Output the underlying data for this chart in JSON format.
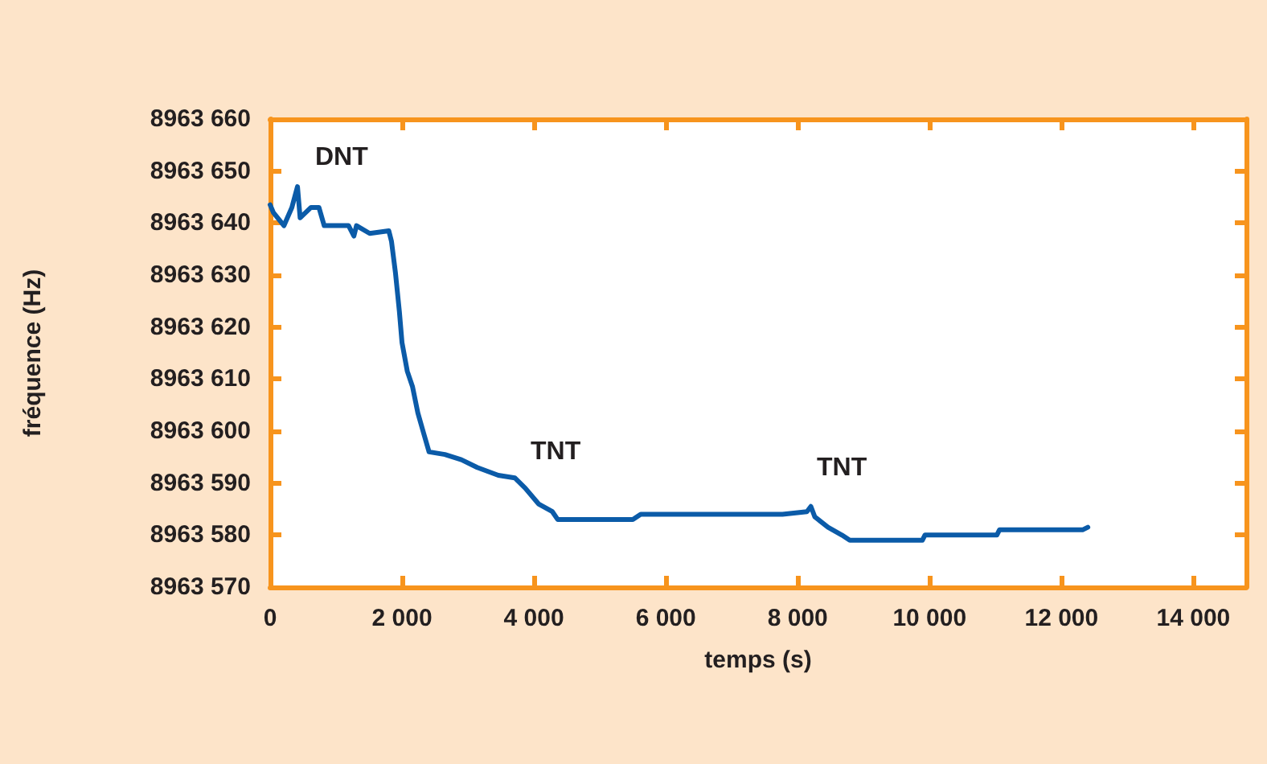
{
  "chart_data": {
    "type": "line",
    "xlabel": "temps (s)",
    "ylabel": "fréquence (Hz)",
    "xlim": [
      0,
      14800
    ],
    "ylim": [
      8963570,
      8963660
    ],
    "xticks": [
      {
        "value": 0,
        "label": "0"
      },
      {
        "value": 2000,
        "label": "2 000"
      },
      {
        "value": 4000,
        "label": "4 000"
      },
      {
        "value": 6000,
        "label": "6 000"
      },
      {
        "value": 8000,
        "label": "8 000"
      },
      {
        "value": 10000,
        "label": "10 000"
      },
      {
        "value": 12000,
        "label": "12 000"
      },
      {
        "value": 14000,
        "label": "14 000"
      }
    ],
    "yticks": [
      {
        "value": 8963570,
        "label": "8963 570"
      },
      {
        "value": 8963580,
        "label": "8963 580"
      },
      {
        "value": 8963590,
        "label": "8963 590"
      },
      {
        "value": 8963600,
        "label": "8963 600"
      },
      {
        "value": 8963610,
        "label": "8963 610"
      },
      {
        "value": 8963620,
        "label": "8963 620"
      },
      {
        "value": 8963630,
        "label": "8963 630"
      },
      {
        "value": 8963640,
        "label": "8963 640"
      },
      {
        "value": 8963650,
        "label": "8963 650"
      },
      {
        "value": 8963660,
        "label": "8963 660"
      }
    ],
    "grid": false,
    "marker": "none",
    "line_style": "solid",
    "x": [
      0,
      50,
      210,
      330,
      415,
      455,
      620,
      740,
      820,
      1190,
      1270,
      1310,
      1510,
      1800,
      1840,
      1900,
      1960,
      2000,
      2080,
      2160,
      2240,
      2330,
      2410,
      2650,
      2900,
      3140,
      3460,
      3710,
      3870,
      4070,
      4280,
      4360,
      5500,
      5620,
      7770,
      8140,
      8200,
      8260,
      8460,
      8670,
      8790,
      9890,
      9930,
      11020,
      11060,
      12320,
      12400
    ],
    "series": [
      {
        "color": "#0b5ba8",
        "values": [
          8963643.5,
          8963642,
          8963639.5,
          8963643,
          8963647,
          8963641,
          8963643,
          8963643,
          8963639.5,
          8963639.5,
          8963637.5,
          8963639.5,
          8963638,
          8963638.5,
          8963636.5,
          8963630.5,
          8963623,
          8963617,
          8963611.5,
          8963608.5,
          8963603.5,
          8963599.5,
          8963596,
          8963595.5,
          8963594.5,
          8963593,
          8963591.5,
          8963591,
          8963589,
          8963586,
          8963584.5,
          8963583,
          8963583,
          8963584,
          8963584,
          8963584.5,
          8963585.5,
          8963583.5,
          8963581.5,
          8963580,
          8963579,
          8963579,
          8963580,
          8963580,
          8963581,
          8963581,
          8963581.5
        ]
      }
    ],
    "annotations": [
      "DNT",
      "TNT",
      "TNT"
    ]
  }
}
